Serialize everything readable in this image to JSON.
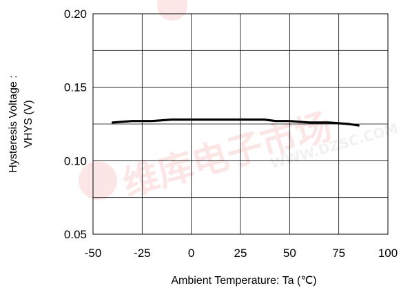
{
  "chart_data": {
    "type": "line",
    "title": "",
    "xlabel": "Ambient Temperature: Ta (℃)",
    "ylabel_lines": [
      "Hysteresis Voltage :",
      "VHYS (V)"
    ],
    "xlim": [
      -50,
      100
    ],
    "ylim": [
      0.05,
      0.2
    ],
    "x_ticks": [
      -50,
      -25,
      0,
      25,
      50,
      75,
      100
    ],
    "x_tick_labels": [
      "-50",
      "-25",
      "0",
      "25",
      "50",
      "75",
      "100"
    ],
    "y_ticks": [
      0.05,
      0.1,
      0.15,
      0.2
    ],
    "y_tick_labels": [
      "0.05",
      "0.10",
      "0.15",
      "0.20"
    ],
    "grid": true,
    "series": [
      {
        "x": [
          -40,
          -30,
          -20,
          -10,
          0,
          10,
          20,
          30,
          37,
          43,
          50,
          60,
          70,
          80,
          85
        ],
        "y": [
          0.126,
          0.127,
          0.127,
          0.128,
          0.128,
          0.128,
          0.128,
          0.128,
          0.128,
          0.127,
          0.127,
          0.126,
          0.126,
          0.125,
          0.124
        ],
        "color": "#000000"
      }
    ]
  },
  "watermark": {
    "cjk": "维库电子市场",
    "url": "WWW.DZSC.COM",
    "color": "#e8453c"
  }
}
